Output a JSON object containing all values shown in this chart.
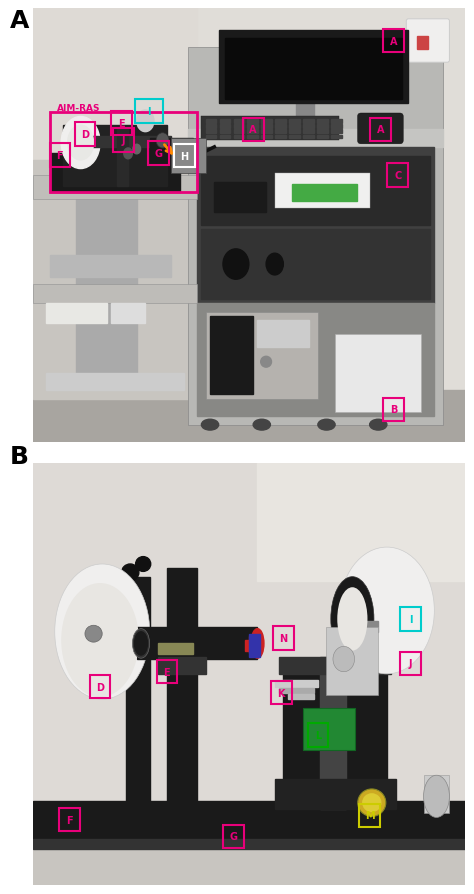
{
  "background_color": "#ffffff",
  "label_color": "#000000",
  "label_fontsize": 18,
  "magenta": "#e8007a",
  "cyan": "#00cccc",
  "white": "#ffffff",
  "orange": "#ff8800",
  "green_label": "#00aa00",
  "yellow_label": "#cccc00",
  "figsize": [
    4.74,
    8.95
  ],
  "dpi": 100,
  "panel_A_label": "A",
  "panel_B_label": "B",
  "aim_ras_text": "AIM-RAS"
}
